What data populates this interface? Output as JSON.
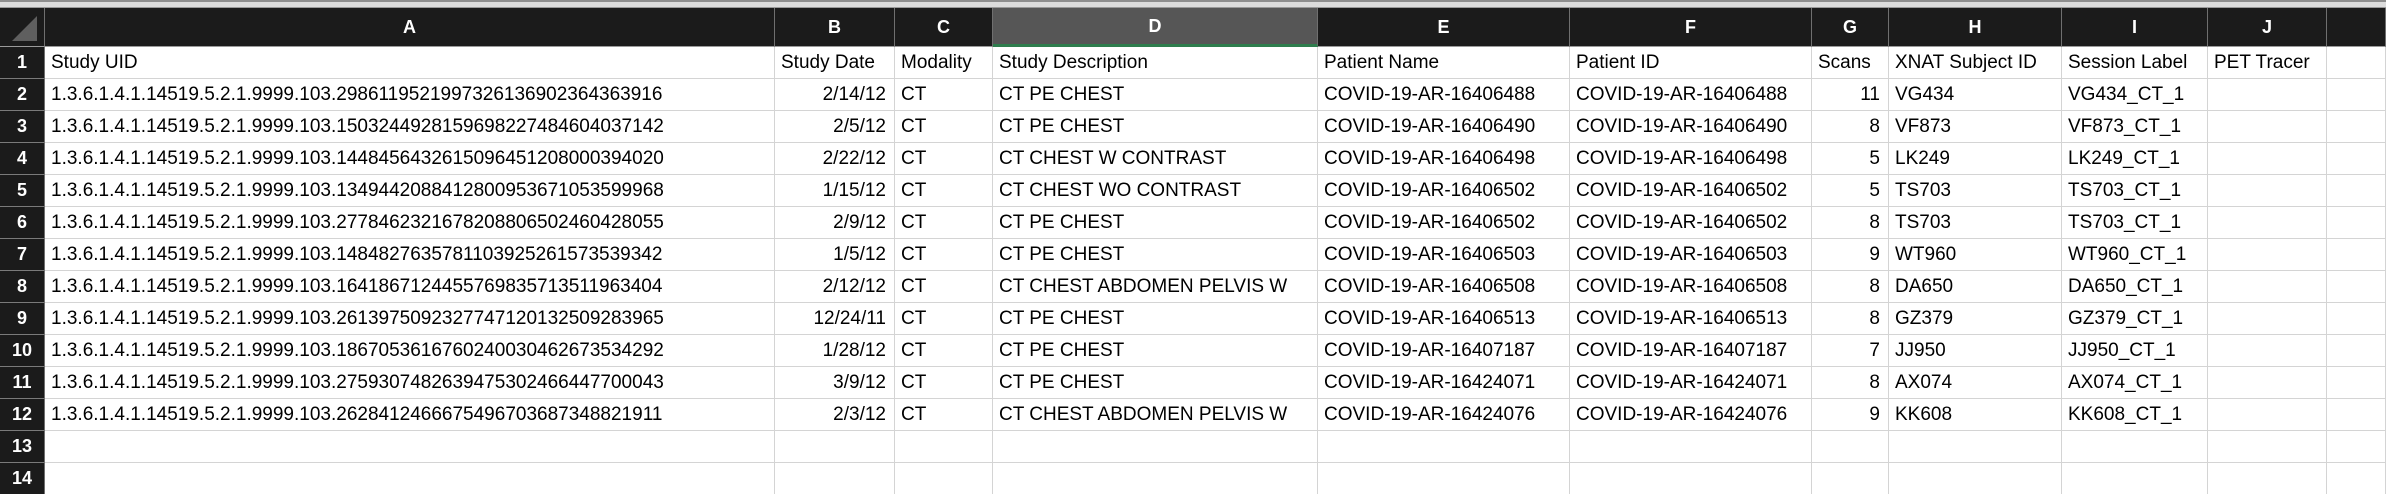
{
  "sheet": {
    "selected_column": "D",
    "select_all_icon": "select-all-triangle",
    "accent_green": "#2e7d4d",
    "header_bg": "#1b1b1b",
    "columns": [
      "A",
      "B",
      "C",
      "D",
      "E",
      "F",
      "G",
      "H",
      "I",
      "J",
      ""
    ],
    "rows": [
      {
        "n": "1",
        "cells": [
          "Study UID",
          "Study Date",
          "Modality",
          "Study Description",
          "Patient Name",
          "Patient ID",
          "Scans",
          "XNAT Subject ID",
          "Session Label",
          "PET Tracer",
          ""
        ]
      },
      {
        "n": "2",
        "cells": [
          "1.3.6.1.4.1.14519.5.2.1.9999.103.2986119521997326136902364363916",
          "2/14/12",
          "CT",
          "CT PE CHEST",
          "COVID-19-AR-16406488",
          "COVID-19-AR-16406488",
          "11",
          "VG434",
          "VG434_CT_1",
          "",
          ""
        ]
      },
      {
        "n": "3",
        "cells": [
          "1.3.6.1.4.1.14519.5.2.1.9999.103.1503244928159698227484604037142",
          "2/5/12",
          "CT",
          "CT PE CHEST",
          "COVID-19-AR-16406490",
          "COVID-19-AR-16406490",
          "8",
          "VF873",
          "VF873_CT_1",
          "",
          ""
        ]
      },
      {
        "n": "4",
        "cells": [
          "1.3.6.1.4.1.14519.5.2.1.9999.103.1448456432615096451208000394020",
          "2/22/12",
          "CT",
          "CT CHEST W CONTRAST",
          "COVID-19-AR-16406498",
          "COVID-19-AR-16406498",
          "5",
          "LK249",
          "LK249_CT_1",
          "",
          ""
        ]
      },
      {
        "n": "5",
        "cells": [
          "1.3.6.1.4.1.14519.5.2.1.9999.103.1349442088412800953671053599968",
          "1/15/12",
          "CT",
          "CT CHEST WO CONTRAST",
          "COVID-19-AR-16406502",
          "COVID-19-AR-16406502",
          "5",
          "TS703",
          "TS703_CT_1",
          "",
          ""
        ]
      },
      {
        "n": "6",
        "cells": [
          "1.3.6.1.4.1.14519.5.2.1.9999.103.2778462321678208806502460428055",
          "2/9/12",
          "CT",
          "CT PE CHEST",
          "COVID-19-AR-16406502",
          "COVID-19-AR-16406502",
          "8",
          "TS703",
          "TS703_CT_1",
          "",
          ""
        ]
      },
      {
        "n": "7",
        "cells": [
          "1.3.6.1.4.1.14519.5.2.1.9999.103.1484827635781103925261573539342",
          "1/5/12",
          "CT",
          "CT PE CHEST",
          "COVID-19-AR-16406503",
          "COVID-19-AR-16406503",
          "9",
          "WT960",
          "WT960_CT_1",
          "",
          ""
        ]
      },
      {
        "n": "8",
        "cells": [
          "1.3.6.1.4.1.14519.5.2.1.9999.103.1641867124455769835713511963404",
          "2/12/12",
          "CT",
          "CT CHEST ABDOMEN PELVIS W",
          "COVID-19-AR-16406508",
          "COVID-19-AR-16406508",
          "8",
          "DA650",
          "DA650_CT_1",
          "",
          ""
        ]
      },
      {
        "n": "9",
        "cells": [
          "1.3.6.1.4.1.14519.5.2.1.9999.103.2613975092327747120132509283965",
          "12/24/11",
          "CT",
          "CT PE CHEST",
          "COVID-19-AR-16406513",
          "COVID-19-AR-16406513",
          "8",
          "GZ379",
          "GZ379_CT_1",
          "",
          ""
        ]
      },
      {
        "n": "10",
        "cells": [
          "1.3.6.1.4.1.14519.5.2.1.9999.103.1867053616760240030462673534292",
          "1/28/12",
          "CT",
          "CT PE CHEST",
          "COVID-19-AR-16407187",
          "COVID-19-AR-16407187",
          "7",
          "JJ950",
          "JJ950_CT_1",
          "",
          ""
        ]
      },
      {
        "n": "11",
        "cells": [
          "1.3.6.1.4.1.14519.5.2.1.9999.103.2759307482639475302466447700043",
          "3/9/12",
          "CT",
          "CT PE CHEST",
          "COVID-19-AR-16424071",
          "COVID-19-AR-16424071",
          "8",
          "AX074",
          "AX074_CT_1",
          "",
          ""
        ]
      },
      {
        "n": "12",
        "cells": [
          "1.3.6.1.4.1.14519.5.2.1.9999.103.2628412466675496703687348821911",
          "2/3/12",
          "CT",
          "CT CHEST ABDOMEN PELVIS W",
          "COVID-19-AR-16424076",
          "COVID-19-AR-16424076",
          "9",
          "KK608",
          "KK608_CT_1",
          "",
          ""
        ]
      },
      {
        "n": "13",
        "cells": [
          "",
          "",
          "",
          "",
          "",
          "",
          "",
          "",
          "",
          "",
          ""
        ]
      },
      {
        "n": "14",
        "cells": [
          "",
          "",
          "",
          "",
          "",
          "",
          "",
          "",
          "",
          "",
          ""
        ]
      }
    ]
  }
}
